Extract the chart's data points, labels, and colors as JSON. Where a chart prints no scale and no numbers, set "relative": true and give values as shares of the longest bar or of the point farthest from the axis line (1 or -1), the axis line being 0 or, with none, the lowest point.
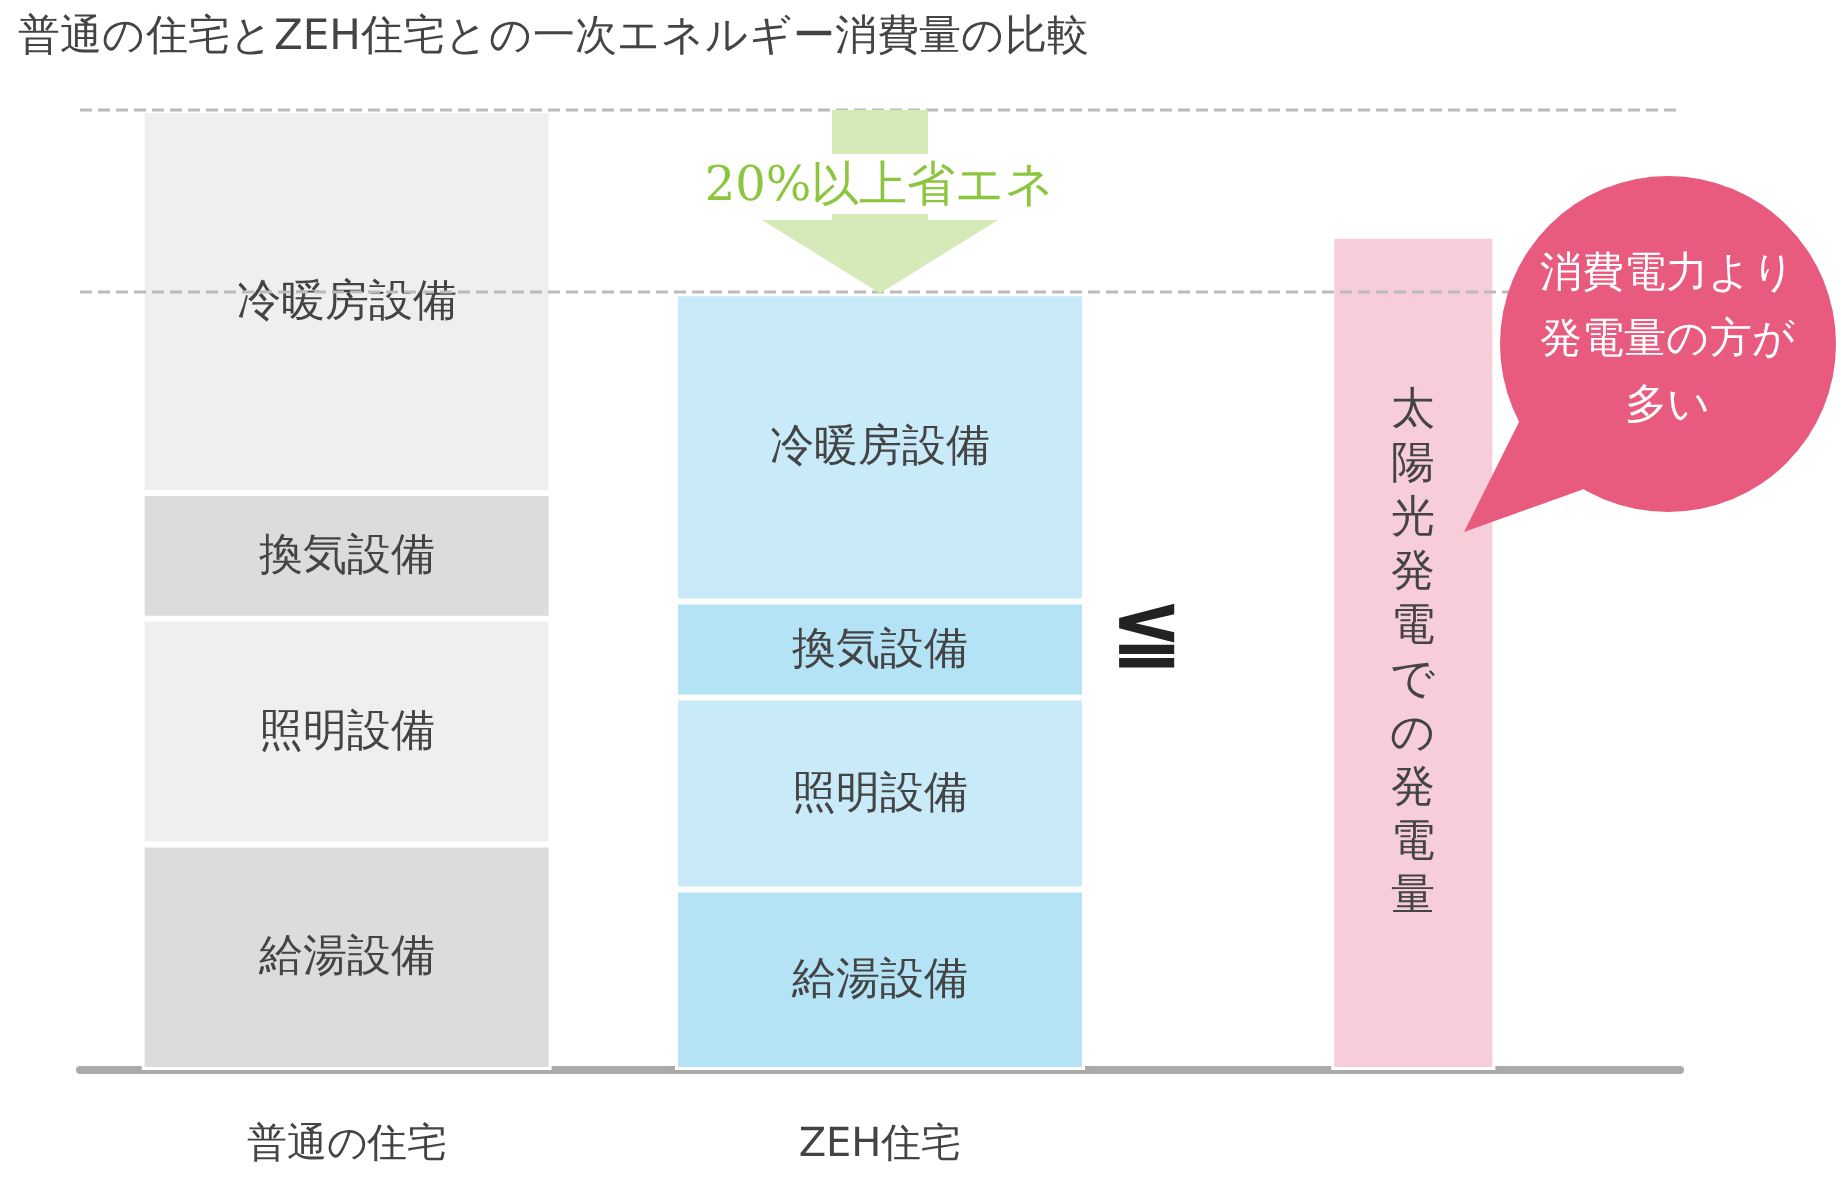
{
  "chart_data": {
    "type": "bar",
    "title": "普通の住宅とZEH住宅との一次エネルギー消費量の比較",
    "categories": [
      "普通の住宅",
      "ZEH住宅",
      null
    ],
    "relative": true,
    "stacked": true,
    "legend": false,
    "series": [
      {
        "name": "給湯設備",
        "colors": [
          "#dcdcdc",
          "#b3e3f5",
          null
        ],
        "values": [
          0.235,
          0.188,
          null
        ]
      },
      {
        "name": "照明設備",
        "colors": [
          "#efefef",
          "#c9eaf8",
          null
        ],
        "values": [
          0.235,
          0.2,
          null
        ]
      },
      {
        "name": "換気設備",
        "colors": [
          "#dcdcdc",
          "#b3e3f5",
          null
        ],
        "values": [
          0.131,
          0.1,
          null
        ]
      },
      {
        "name": "冷暖房設備",
        "colors": [
          "#efefef",
          "#c9eaf8",
          null
        ],
        "values": [
          0.399,
          0.321,
          null
        ]
      },
      {
        "name": "太陽光発電での発電量",
        "color": "#f6cdd9",
        "values": [
          null,
          null,
          0.869
        ]
      }
    ],
    "ref_lines": [
      {
        "axis": "y",
        "value": 1,
        "line_style": "dashed",
        "color": "#bbbbbb"
      },
      {
        "axis": "y",
        "value": 0.809,
        "line_style": "dashed",
        "color": "#bbbbbb"
      }
    ],
    "annotations": [
      "20%以上省エネ",
      "≦",
      "消費電力より発電量の方が多い"
    ]
  }
}
